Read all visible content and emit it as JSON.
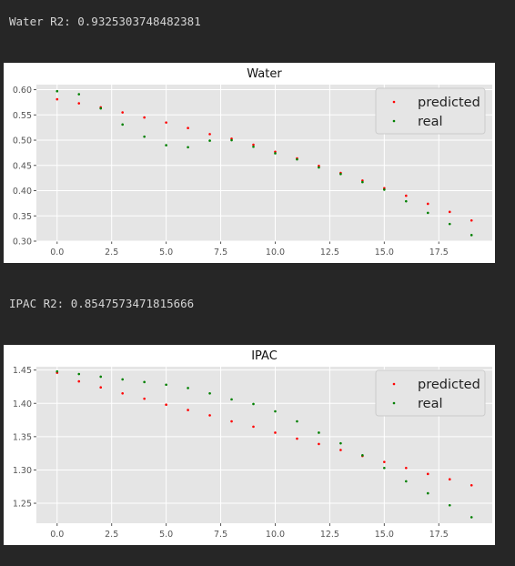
{
  "outputs": [
    {
      "text": "Water R2: 0.9325303748482381"
    },
    {
      "text": "IPAC R2: 0.8547573471815666"
    }
  ],
  "chart_data": [
    {
      "type": "scatter",
      "title": "Water",
      "xlim": [
        -0.95,
        19.95
      ],
      "ylim": [
        0.3,
        0.61
      ],
      "xticks": [
        0,
        2.5,
        5,
        7.5,
        10,
        12.5,
        15,
        17.5
      ],
      "xtick_labels": [
        "0.0",
        "2.5",
        "5.0",
        "7.5",
        "10.0",
        "12.5",
        "15.0",
        "17.5"
      ],
      "yticks": [
        0.3,
        0.35,
        0.4,
        0.45,
        0.5,
        0.55,
        0.6
      ],
      "ytick_labels": [
        "0.30",
        "0.35",
        "0.40",
        "0.45",
        "0.50",
        "0.55",
        "0.60"
      ],
      "grid": true,
      "legend_position": "top-right",
      "x": [
        0,
        1,
        2,
        3,
        4,
        5,
        6,
        7,
        8,
        9,
        10,
        11,
        12,
        13,
        14,
        15,
        16,
        17,
        18,
        19
      ],
      "series": [
        {
          "name": "predicted",
          "color": "#ff0000",
          "values": [
            0.581,
            0.573,
            0.565,
            0.555,
            0.545,
            0.535,
            0.524,
            0.512,
            0.503,
            0.491,
            0.477,
            0.464,
            0.449,
            0.435,
            0.42,
            0.405,
            0.39,
            0.374,
            0.358,
            0.341
          ]
        },
        {
          "name": "real",
          "color": "#008000",
          "values": [
            0.597,
            0.591,
            0.563,
            0.531,
            0.507,
            0.49,
            0.486,
            0.499,
            0.5,
            0.487,
            0.474,
            0.462,
            0.446,
            0.433,
            0.417,
            0.402,
            0.379,
            0.356,
            0.334,
            0.312
          ]
        }
      ]
    },
    {
      "type": "scatter",
      "title": "IPAC",
      "xlim": [
        -0.95,
        19.95
      ],
      "ylim": [
        1.22,
        1.455
      ],
      "xticks": [
        0,
        2.5,
        5,
        7.5,
        10,
        12.5,
        15,
        17.5
      ],
      "xtick_labels": [
        "0.0",
        "2.5",
        "5.0",
        "7.5",
        "10.0",
        "12.5",
        "15.0",
        "17.5"
      ],
      "yticks": [
        1.25,
        1.3,
        1.35,
        1.4,
        1.45
      ],
      "ytick_labels": [
        "1.25",
        "1.30",
        "1.35",
        "1.40",
        "1.45"
      ],
      "grid": true,
      "legend_position": "top-right",
      "x": [
        0,
        1,
        2,
        3,
        4,
        5,
        6,
        7,
        8,
        9,
        10,
        11,
        12,
        13,
        14,
        15,
        16,
        17,
        18,
        19
      ],
      "series": [
        {
          "name": "predicted",
          "color": "#ff0000",
          "values": [
            1.446,
            1.433,
            1.424,
            1.415,
            1.407,
            1.398,
            1.39,
            1.382,
            1.373,
            1.365,
            1.356,
            1.347,
            1.339,
            1.33,
            1.321,
            1.312,
            1.303,
            1.294,
            1.286,
            1.277
          ]
        },
        {
          "name": "real",
          "color": "#008000",
          "values": [
            1.448,
            1.444,
            1.44,
            1.436,
            1.432,
            1.428,
            1.423,
            1.415,
            1.406,
            1.399,
            1.388,
            1.373,
            1.356,
            1.34,
            1.322,
            1.303,
            1.283,
            1.265,
            1.247,
            1.229
          ]
        }
      ]
    }
  ]
}
